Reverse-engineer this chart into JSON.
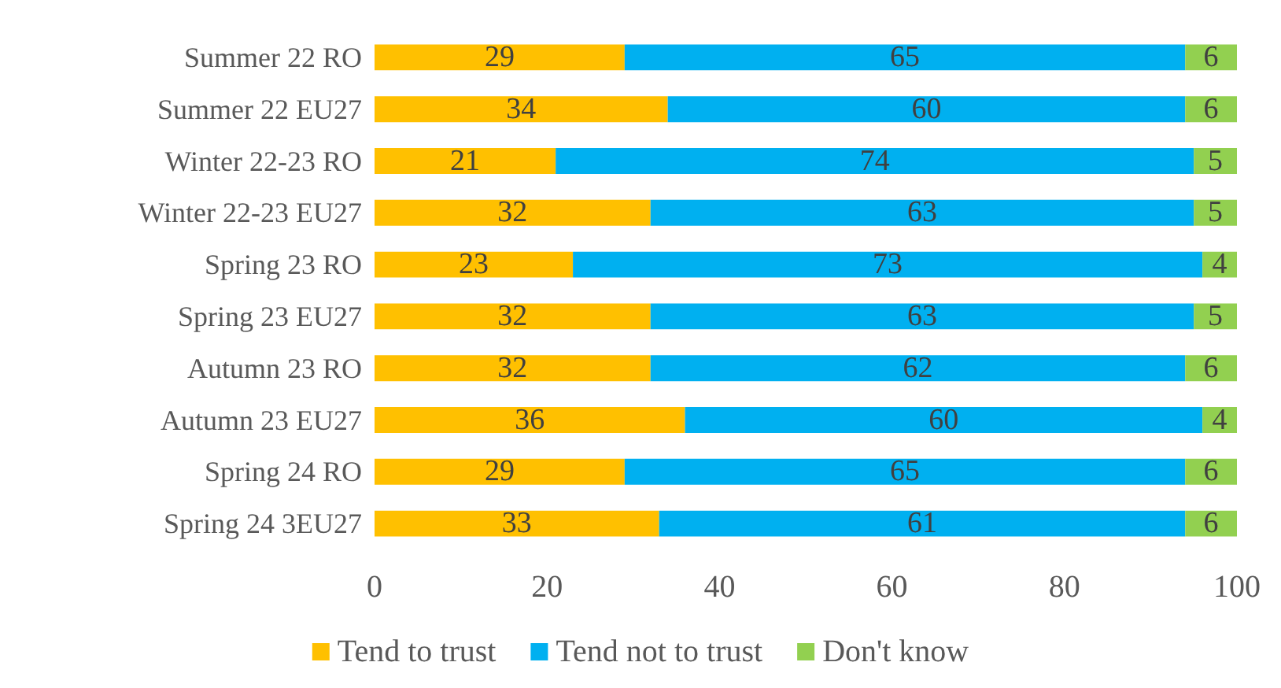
{
  "chart_data": {
    "type": "bar",
    "orientation": "horizontal",
    "stacked": true,
    "data_labels": true,
    "legend": "bottom",
    "grid": false,
    "categories": [
      "Summer 22 RO",
      "Summer 22 EU27",
      "Winter 22-23 RO",
      "Winter 22-23 EU27",
      "Spring 23 RO",
      "Spring 23 EU27",
      "Autumn 23 RO",
      "Autumn 23 EU27",
      "Spring 24 RO",
      "Spring 24 3EU27"
    ],
    "series": [
      {
        "name": "Tend to trust",
        "color": "#ffc000",
        "values": [
          29,
          34,
          21,
          32,
          23,
          32,
          32,
          36,
          29,
          33
        ]
      },
      {
        "name": "Tend not to trust",
        "color": "#00b0f0",
        "values": [
          65,
          60,
          74,
          63,
          73,
          63,
          62,
          60,
          65,
          61
        ]
      },
      {
        "name": "Don't know",
        "color": "#92d050",
        "values": [
          6,
          6,
          5,
          5,
          4,
          5,
          6,
          4,
          6,
          6
        ]
      }
    ],
    "xlim": [
      0,
      100
    ],
    "xticks": [
      0,
      20,
      40,
      60,
      80,
      100
    ]
  }
}
